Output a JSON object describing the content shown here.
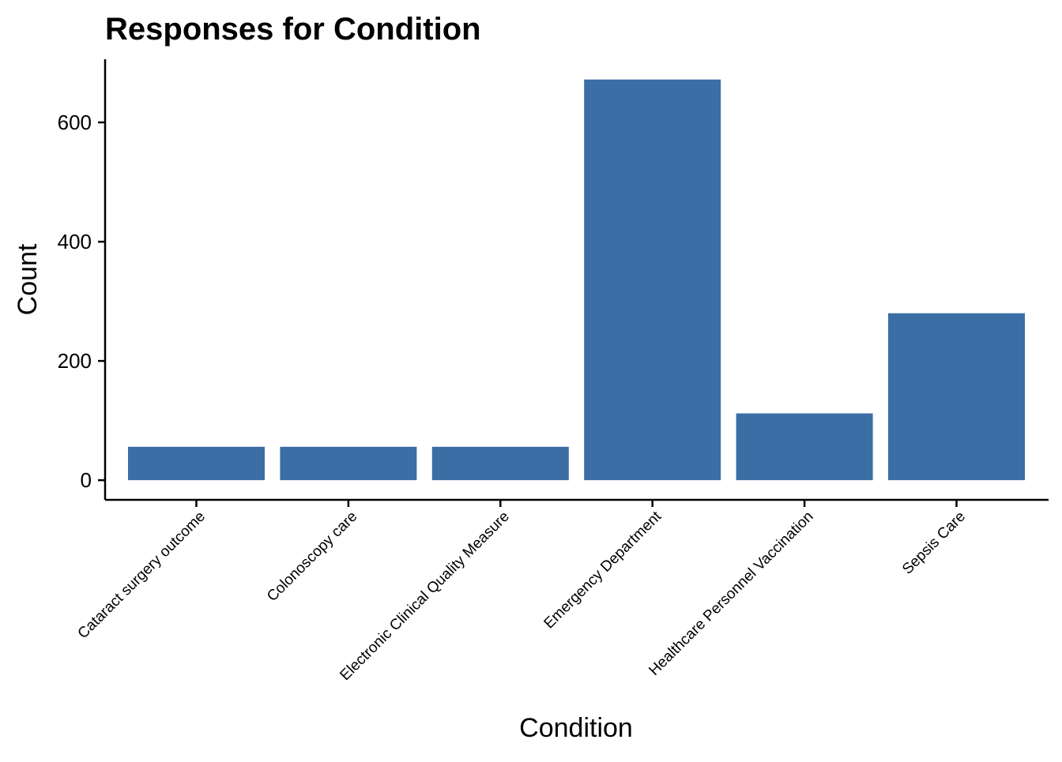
{
  "chart_data": {
    "type": "bar",
    "title": "Responses for Condition",
    "xlabel": "Condition",
    "ylabel": "Count",
    "categories": [
      "Cataract surgery outcome",
      "Colonoscopy care",
      "Electronic Clinical Quality Measure",
      "Emergency Department",
      "Healthcare Personnel Vaccination",
      "Sepsis Care"
    ],
    "values": [
      56,
      56,
      56,
      672,
      112,
      280
    ],
    "ylim": [
      -33,
      706
    ],
    "yticks": [
      0,
      200,
      400,
      600
    ],
    "bar_color": "#3A6EA5",
    "grid": false,
    "legend": "none"
  }
}
